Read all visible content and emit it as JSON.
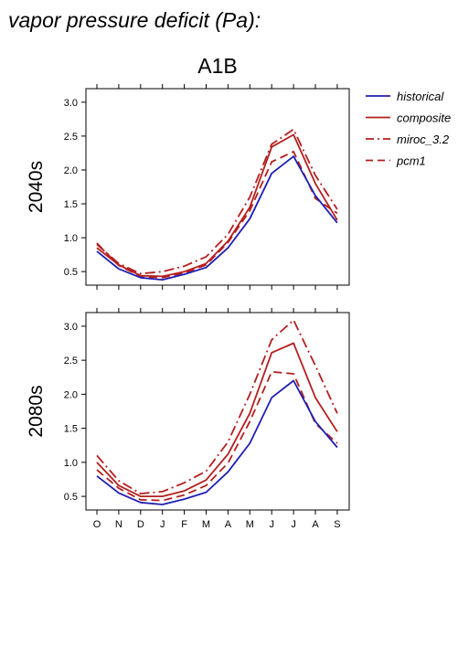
{
  "figure": {
    "header": "vapor pressure deficit (Pa):",
    "scenario": "A1B"
  },
  "legend": [
    {
      "name": "historical",
      "color": "#1f1fb4",
      "dash": "solid"
    },
    {
      "name": "composite",
      "color": "#b41f1f",
      "dash": "solid"
    },
    {
      "name": "miroc_3.2",
      "color": "#b41f1f",
      "dash": "dashdot"
    },
    {
      "name": "pcm1",
      "color": "#b41f1f",
      "dash": "dashed"
    }
  ],
  "chart_data": [
    {
      "type": "line",
      "title": "A1B",
      "ylabel": "2040s",
      "x": [
        "O",
        "N",
        "D",
        "J",
        "F",
        "M",
        "A",
        "M",
        "J",
        "J",
        "A",
        "S"
      ],
      "ylim": [
        0.3,
        3.2
      ],
      "yticks": [
        0.5,
        1.0,
        1.5,
        2.0,
        2.5,
        3.0
      ],
      "ytick_labels": [
        "0.5",
        "1.0",
        "1.5",
        "2.0",
        "2.5",
        "3.0"
      ],
      "series": [
        {
          "name": "historical",
          "values": [
            0.8,
            0.54,
            0.41,
            0.38,
            0.46,
            0.56,
            0.85,
            1.28,
            1.95,
            2.2,
            1.62,
            1.22
          ]
        },
        {
          "name": "composite",
          "values": [
            0.85,
            0.6,
            0.44,
            0.43,
            0.5,
            0.62,
            0.95,
            1.45,
            2.34,
            2.52,
            1.8,
            1.26
          ]
        },
        {
          "name": "miroc_3.2",
          "values": [
            0.9,
            0.62,
            0.47,
            0.5,
            0.58,
            0.72,
            1.05,
            1.6,
            2.38,
            2.6,
            1.92,
            1.42
          ]
        },
        {
          "name": "pcm1",
          "values": [
            0.92,
            0.59,
            0.43,
            0.41,
            0.48,
            0.6,
            0.93,
            1.4,
            2.12,
            2.27,
            1.58,
            1.36
          ]
        }
      ]
    },
    {
      "type": "line",
      "title": "",
      "ylabel": "2080s",
      "x": [
        "O",
        "N",
        "D",
        "J",
        "F",
        "M",
        "A",
        "M",
        "J",
        "J",
        "A",
        "S"
      ],
      "xtick_labels": [
        "O",
        "N",
        "D",
        "J",
        "F",
        "M",
        "A",
        "M",
        "J",
        "J",
        "A",
        "S"
      ],
      "ylim": [
        0.3,
        3.2
      ],
      "yticks": [
        0.5,
        1.0,
        1.5,
        2.0,
        2.5,
        3.0
      ],
      "ytick_labels": [
        "0.5",
        "1.0",
        "1.5",
        "2.0",
        "2.5",
        "3.0"
      ],
      "series": [
        {
          "name": "historical",
          "values": [
            0.8,
            0.55,
            0.41,
            0.38,
            0.46,
            0.56,
            0.86,
            1.28,
            1.95,
            2.2,
            1.6,
            1.22
          ]
        },
        {
          "name": "composite",
          "values": [
            1.0,
            0.66,
            0.5,
            0.5,
            0.58,
            0.74,
            1.12,
            1.72,
            2.61,
            2.75,
            1.95,
            1.45
          ]
        },
        {
          "name": "miroc_3.2",
          "values": [
            1.1,
            0.73,
            0.54,
            0.57,
            0.7,
            0.87,
            1.3,
            2.0,
            2.8,
            3.09,
            2.42,
            1.72
          ]
        },
        {
          "name": "pcm1",
          "values": [
            0.89,
            0.62,
            0.45,
            0.44,
            0.52,
            0.66,
            0.99,
            1.6,
            2.33,
            2.3,
            1.57,
            1.28
          ]
        }
      ]
    }
  ]
}
